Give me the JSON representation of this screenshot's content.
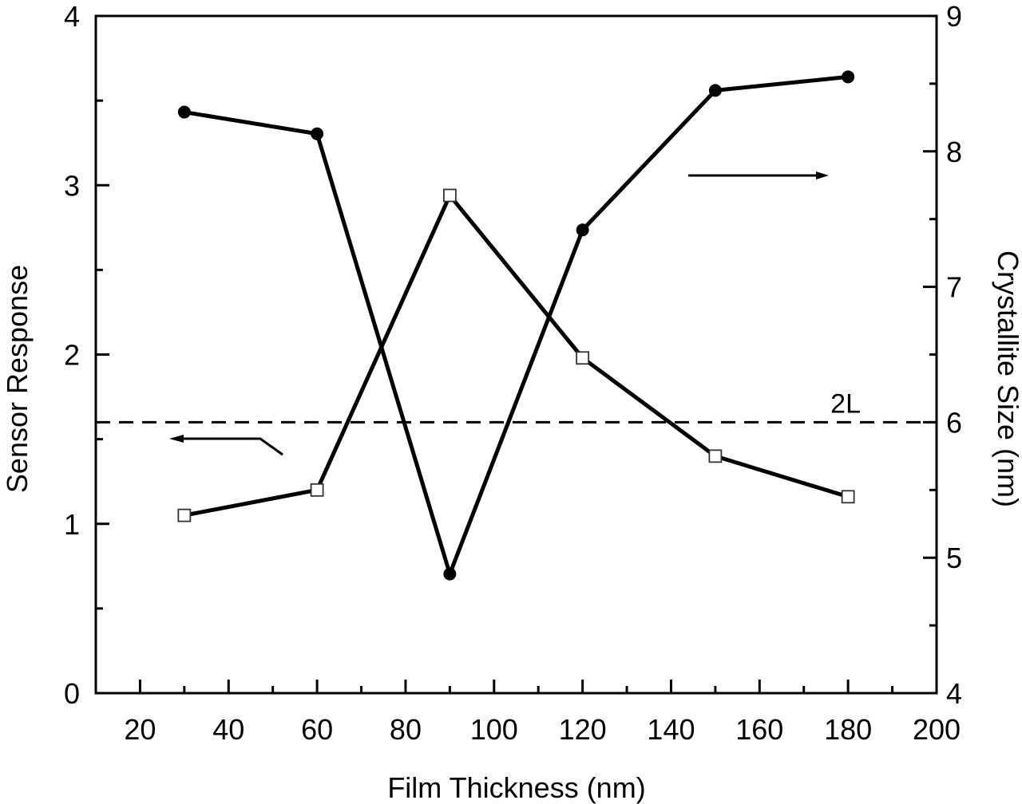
{
  "chart_data": {
    "type": "line",
    "title": "",
    "xlabel": "Film Thickness (nm)",
    "ylabel_left": "Sensor Response",
    "ylabel_right": "Crystallite Size (nm)",
    "xlim": [
      10,
      200
    ],
    "ylim_left": [
      0,
      4
    ],
    "ylim_right": [
      4,
      9
    ],
    "x_ticks": [
      20,
      40,
      60,
      80,
      100,
      120,
      140,
      160,
      180,
      200
    ],
    "y_ticks_left": [
      0,
      1,
      2,
      3,
      4
    ],
    "y_ticks_right": [
      4,
      5,
      6,
      7,
      8,
      9
    ],
    "grid": false,
    "x": [
      30,
      60,
      90,
      120,
      150,
      180
    ],
    "series": [
      {
        "name": "Sensor Response",
        "axis": "left",
        "marker": "open-square",
        "values": [
          1.05,
          1.2,
          2.94,
          1.98,
          1.4,
          1.16
        ]
      },
      {
        "name": "Crystallite Size",
        "axis": "right",
        "marker": "filled-circle",
        "values": [
          8.29,
          8.13,
          4.88,
          7.42,
          8.45,
          8.55
        ]
      }
    ],
    "reference_line": {
      "label": "2L",
      "axis": "right",
      "value": 6.0,
      "style": "dashed"
    },
    "annotations": [
      {
        "type": "arrow",
        "direction": "left",
        "meaning": "open squares read on left axis"
      },
      {
        "type": "arrow",
        "direction": "right",
        "meaning": "filled circles read on right axis"
      }
    ]
  }
}
